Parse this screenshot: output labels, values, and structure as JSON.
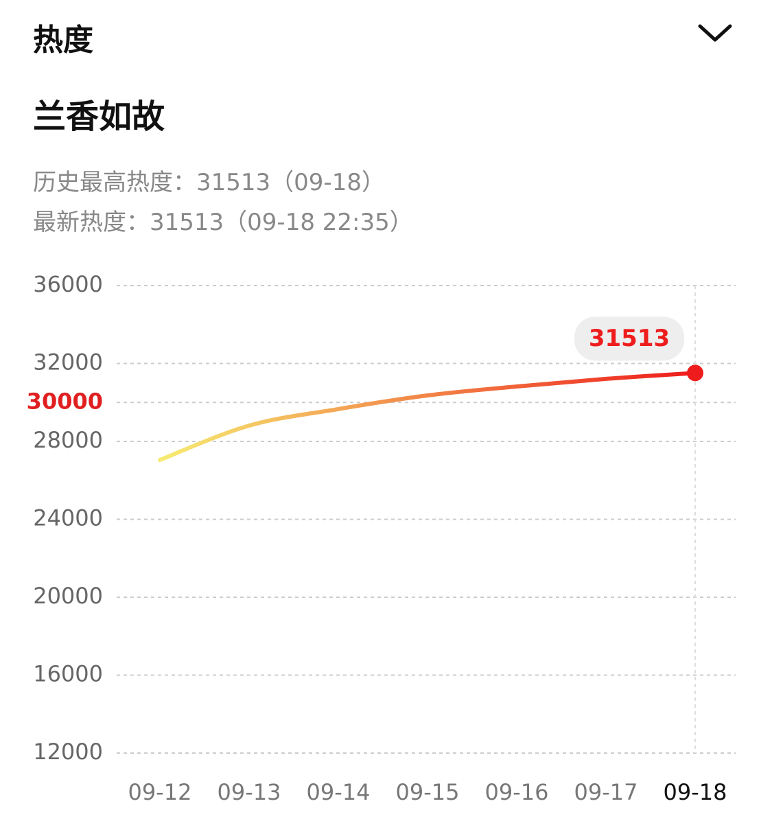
{
  "header": {
    "title": "热度"
  },
  "name": "兰香如故",
  "stats": [
    "历史最高热度：31513（09-18）",
    "最新热度：31513（09-18 22:35）"
  ],
  "chart_data": {
    "type": "line",
    "categories": [
      "09-12",
      "09-13",
      "09-14",
      "09-15",
      "09-16",
      "09-17",
      "09-18"
    ],
    "series": [
      {
        "name": "热度",
        "values": [
          27050,
          28810,
          29660,
          30360,
          30820,
          31210,
          31513
        ]
      }
    ],
    "color_start": "#f6ec72",
    "color_end": "#ee1c1c",
    "ylim": [
      12000,
      36000
    ],
    "yticks": [
      12000,
      16000,
      20000,
      24000,
      28000,
      32000,
      36000
    ],
    "reference_value": 30000,
    "reference_color": "#e02020",
    "selected_index": 6,
    "grid": true
  }
}
